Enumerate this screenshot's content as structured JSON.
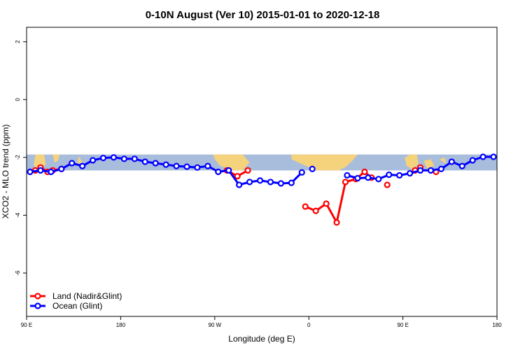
{
  "chart_data": {
    "type": "line",
    "title": "0-10N August (Ver 10)   2015-01-01 to 2020-12-18",
    "xlabel": "Longitude (deg E)",
    "ylabel": "XCO2 - MLO trend (ppm)",
    "xlim": [
      -90,
      180
    ],
    "ylim": [
      -7.5,
      2.5
    ],
    "x_ticks": [
      {
        "value": -90,
        "label": "90 E"
      },
      {
        "value": -36,
        "label": "180"
      },
      {
        "value": 18,
        "label": "90 W"
      },
      {
        "value": 72,
        "label": "0"
      },
      {
        "value": 126,
        "label": "90 E"
      },
      {
        "value": 180,
        "label": "180"
      }
    ],
    "y_ticks": [
      2,
      0,
      -2,
      -4,
      -6
    ],
    "grid": false,
    "legend_position": "bottom-left",
    "background_map": {
      "ocean_color": "#a8bcdc",
      "land_color": "#f5d27c",
      "y_range": [
        -2.45,
        -1.9
      ]
    },
    "series": [
      {
        "name": "Land (Nadir&Glint)",
        "color": "#ff0000",
        "segments": [
          {
            "x": [
              -85,
              -82,
              -78
            ],
            "y": [
              -2.45,
              -2.35,
              -2.5
            ]
          },
          {
            "x": [
              -75,
              -70
            ],
            "y": [
              -2.45,
              -2.4
            ]
          },
          {
            "x": [
              25,
              31,
              37
            ],
            "y": [
              -2.45,
              -2.65,
              -2.45
            ]
          },
          {
            "x": [
              70,
              76,
              82,
              88,
              93,
              99,
              104,
              108
            ],
            "y": [
              -3.7,
              -3.85,
              -3.6,
              -4.25,
              -2.85,
              -2.75,
              -2.5,
              -2.7
            ]
          },
          {
            "x": [
              117
            ],
            "y": [
              -2.95
            ]
          },
          {
            "x": [
              133,
              136
            ],
            "y": [
              -2.45,
              -2.35
            ]
          },
          {
            "x": [
              145
            ],
            "y": [
              -2.5
            ]
          }
        ]
      },
      {
        "name": "Ocean (Glint)",
        "color": "#0000ff",
        "segments": [
          {
            "x": [
              -88,
              -82,
              -76,
              -70,
              -64,
              -58,
              -52,
              -46,
              -40,
              -34,
              -28,
              -22,
              -16,
              -10,
              -4,
              2,
              8,
              14,
              20,
              26,
              32,
              38,
              44,
              50,
              56,
              62,
              68
            ],
            "y": [
              -2.5,
              -2.45,
              -2.5,
              -2.4,
              -2.2,
              -2.3,
              -2.1,
              -2.02,
              -2.0,
              -2.05,
              -2.05,
              -2.15,
              -2.2,
              -2.25,
              -2.3,
              -2.32,
              -2.35,
              -2.3,
              -2.5,
              -2.45,
              -2.95,
              -2.85,
              -2.8,
              -2.85,
              -2.9,
              -2.88,
              -2.52
            ]
          },
          {
            "x": [
              74
            ],
            "y": [
              -2.4
            ]
          },
          {
            "x": [
              94,
              100,
              106,
              112,
              118,
              124,
              130,
              136,
              142,
              148,
              154,
              160,
              166,
              172,
              178
            ],
            "y": [
              -2.62,
              -2.72,
              -2.7,
              -2.75,
              -2.6,
              -2.62,
              -2.55,
              -2.45,
              -2.45,
              -2.4,
              -2.15,
              -2.3,
              -2.1,
              -1.98,
              -1.98
            ]
          }
        ]
      }
    ]
  }
}
